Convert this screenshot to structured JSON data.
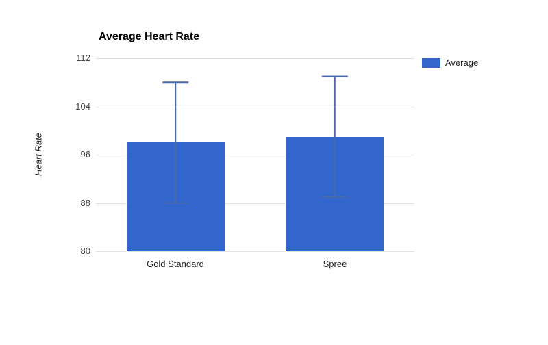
{
  "chart_data": {
    "type": "bar",
    "title": "Average Heart Rate",
    "ylabel": "Heart Rate",
    "xlabel": "",
    "categories": [
      "Gold Standard",
      "Spree"
    ],
    "series": [
      {
        "name": "Average",
        "values": [
          98,
          99
        ],
        "error_low": [
          88,
          89
        ],
        "error_high": [
          108,
          109
        ]
      }
    ],
    "ylim": [
      80,
      112
    ],
    "yticks": [
      80,
      88,
      96,
      104,
      112
    ],
    "grid": true,
    "legend_position": "right",
    "bar_color": "#3366cc",
    "error_bar_color": "#4a69a8",
    "gridline_color": "#e0e0e0",
    "background_color": "#ffffff"
  }
}
